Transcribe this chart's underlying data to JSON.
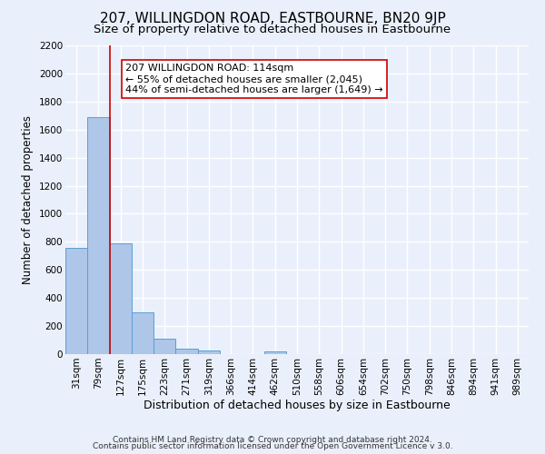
{
  "title": "207, WILLINGDON ROAD, EASTBOURNE, BN20 9JP",
  "subtitle": "Size of property relative to detached houses in Eastbourne",
  "xlabel": "Distribution of detached houses by size in Eastbourne",
  "ylabel": "Number of detached properties",
  "categories": [
    "31sqm",
    "79sqm",
    "127sqm",
    "175sqm",
    "223sqm",
    "271sqm",
    "319sqm",
    "366sqm",
    "414sqm",
    "462sqm",
    "510sqm",
    "558sqm",
    "606sqm",
    "654sqm",
    "702sqm",
    "750sqm",
    "798sqm",
    "846sqm",
    "894sqm",
    "941sqm",
    "989sqm"
  ],
  "bar_values": [
    760,
    1690,
    790,
    295,
    110,
    40,
    28,
    0,
    0,
    18,
    0,
    0,
    0,
    0,
    0,
    0,
    0,
    0,
    0,
    0,
    0
  ],
  "bar_color": "#aec6e8",
  "bar_edge_color": "#5a9fd4",
  "background_color": "#eaf0fb",
  "grid_color": "#ffffff",
  "vline_color": "#cc0000",
  "vline_x": 1.5,
  "annotation_text": "207 WILLINGDON ROAD: 114sqm\n← 55% of detached houses are smaller (2,045)\n44% of semi-detached houses are larger (1,649) →",
  "annotation_box_color": "#ffffff",
  "annotation_box_edge": "#cc0000",
  "ylim": [
    0,
    2200
  ],
  "yticks": [
    0,
    200,
    400,
    600,
    800,
    1000,
    1200,
    1400,
    1600,
    1800,
    2000,
    2200
  ],
  "footer_line1": "Contains HM Land Registry data © Crown copyright and database right 2024.",
  "footer_line2": "Contains public sector information licensed under the Open Government Licence v 3.0.",
  "title_fontsize": 11,
  "subtitle_fontsize": 9.5,
  "xlabel_fontsize": 9,
  "ylabel_fontsize": 8.5,
  "tick_fontsize": 7.5,
  "annotation_fontsize": 8,
  "footer_fontsize": 6.5
}
